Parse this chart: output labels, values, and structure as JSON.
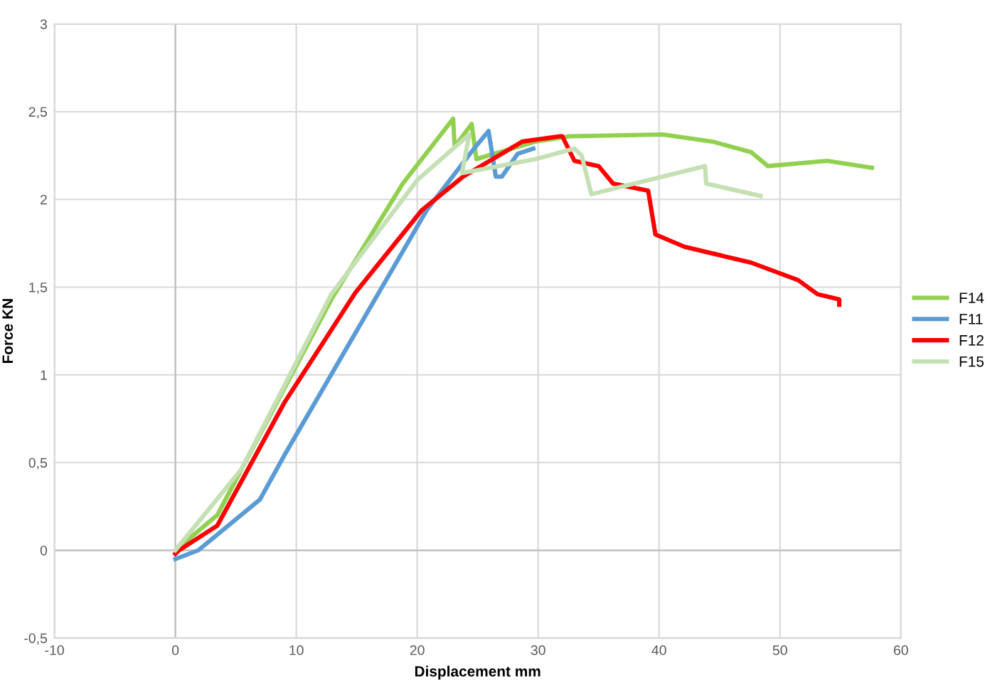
{
  "chart_data": {
    "type": "line",
    "xlabel": "Displacement mm",
    "ylabel": "Force KN",
    "xlim": [
      -10,
      60
    ],
    "xticks": [
      -10,
      0,
      10,
      20,
      30,
      40,
      50,
      60
    ],
    "ylim": [
      -0.5,
      3
    ],
    "yticks": [
      {
        "value": -0.5,
        "label": "-0,5"
      },
      0,
      {
        "value": 0.5,
        "label": "0,5"
      },
      1,
      {
        "value": 1.5,
        "label": "1,5"
      },
      2,
      {
        "value": 2.5,
        "label": "2,5"
      },
      3
    ],
    "grid": true,
    "legend": "right",
    "marker": "none",
    "line_style": "solid",
    "series": [
      {
        "name": "F14",
        "color": "#92d050",
        "x": [
          0,
          3.46,
          12.9,
          18.8,
          22.97,
          23.1,
          24.5,
          24.9,
          29.8,
          32.6,
          40.3,
          44.4,
          47.6,
          49.0,
          53.9,
          57.6
        ],
        "values": [
          0,
          0.2,
          1.43,
          2.09,
          2.46,
          2.3,
          2.43,
          2.23,
          2.33,
          2.36,
          2.37,
          2.33,
          2.27,
          2.19,
          2.22,
          2.18
        ]
      },
      {
        "name": "F11",
        "color": "#5b9bd5",
        "x": [
          0,
          1.9,
          7.0,
          9.0,
          14.9,
          20.8,
          24.7,
          25.9,
          26.5,
          27.0,
          28.3,
          29.6
        ],
        "values": [
          -0.05,
          0,
          0.29,
          0.54,
          1.24,
          1.94,
          2.29,
          2.39,
          2.13,
          2.13,
          2.26,
          2.29
        ]
      },
      {
        "name": "F12",
        "color": "#ff0000",
        "x": [
          0,
          0.3,
          3.46,
          9.0,
          14.9,
          20.4,
          23.8,
          28.7,
          31.8,
          32.0,
          33.0,
          35.0,
          36.2,
          39.1,
          39.7,
          42.1,
          47.6,
          51.5,
          53.1,
          54.9,
          54.9
        ],
        "values": [
          -0.02,
          0,
          0.14,
          0.84,
          1.47,
          1.94,
          2.13,
          2.33,
          2.36,
          2.36,
          2.22,
          2.19,
          2.09,
          2.05,
          1.8,
          1.73,
          1.64,
          1.54,
          1.46,
          1.43,
          1.4
        ]
      },
      {
        "name": "F15",
        "color": "#c5e0b4",
        "x": [
          0,
          5.44,
          12.9,
          20.0,
          24.3,
          23.7,
          29.8,
          33.0,
          33.6,
          34.4,
          43.8,
          43.9,
          48.4
        ],
        "values": [
          0,
          0.46,
          1.46,
          2.11,
          2.37,
          2.15,
          2.23,
          2.29,
          2.25,
          2.03,
          2.19,
          2.09,
          2.02
        ]
      }
    ]
  }
}
